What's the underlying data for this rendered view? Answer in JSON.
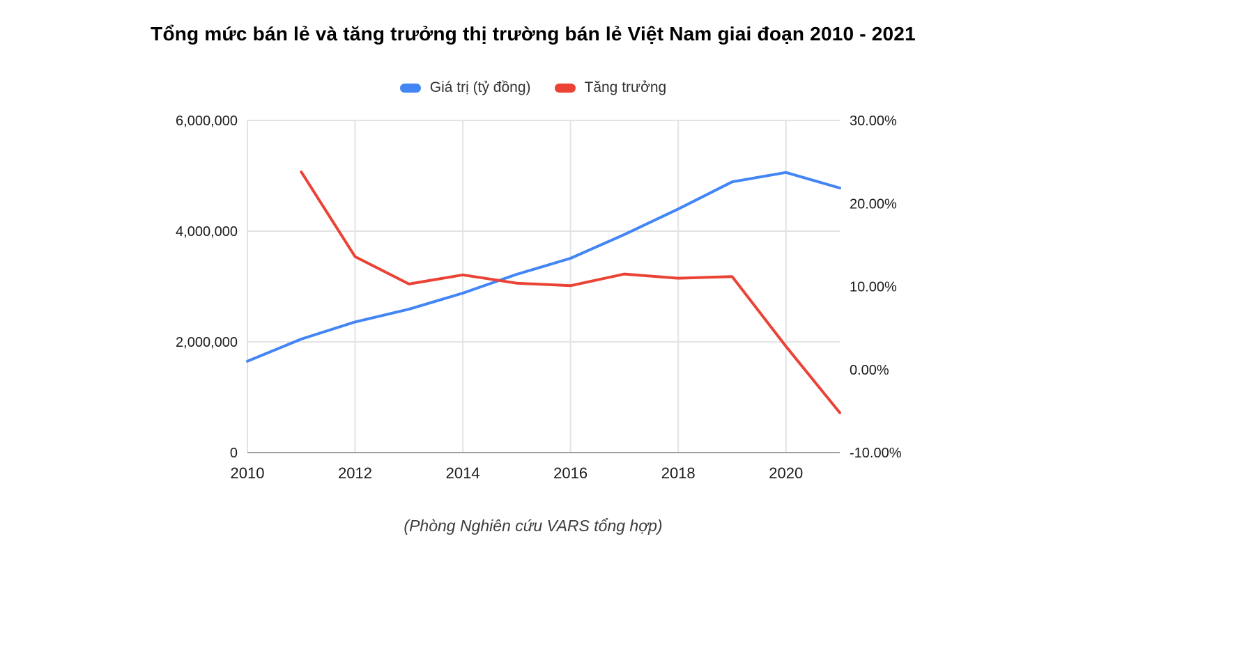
{
  "title": "Tổng mức bán lẻ và tăng trưởng thị trường bán lẻ Việt Nam giai đoạn 2010 - 2021",
  "caption": "(Phòng Nghiên cứu VARS tổng hợp)",
  "legend": {
    "items": [
      {
        "label": "Giá trị (tỷ đồng)",
        "color": "#4285F4"
      },
      {
        "label": "Tăng trưởng",
        "color": "#EA4335"
      }
    ]
  },
  "chart_data": {
    "type": "line",
    "title": "Tổng mức bán lẻ và tăng trưởng thị trường bán lẻ Việt Nam giai đoạn 2010 - 2021",
    "x": [
      2010,
      2011,
      2012,
      2013,
      2014,
      2015,
      2016,
      2017,
      2018,
      2019,
      2020,
      2021
    ],
    "x_ticks": [
      2010,
      2012,
      2014,
      2016,
      2018,
      2020
    ],
    "x_tick_labels": [
      "2010",
      "2012",
      "2014",
      "2016",
      "2018",
      "2020"
    ],
    "series": [
      {
        "name": "Giá trị (tỷ đồng)",
        "axis": "left",
        "color": "#4285F4",
        "values": [
          1650000,
          2050000,
          2360000,
          2590000,
          2880000,
          3220000,
          3510000,
          3940000,
          4400000,
          4890000,
          5060000,
          4780000
        ]
      },
      {
        "name": "Tăng trưởng",
        "axis": "right",
        "color": "#EA4335",
        "values": [
          null,
          23.8,
          13.6,
          10.3,
          11.4,
          10.4,
          10.1,
          11.5,
          11.0,
          11.2,
          2.8,
          -5.2
        ]
      }
    ],
    "left_axis": {
      "min": 0,
      "max": 6000000,
      "ticks": [
        0,
        2000000,
        4000000,
        6000000
      ],
      "tick_labels": [
        "0",
        "2,000,000",
        "4,000,000",
        "6,000,000"
      ]
    },
    "right_axis": {
      "min": -10,
      "max": 30,
      "ticks": [
        -10,
        0,
        10,
        20,
        30
      ],
      "tick_labels": [
        "-10.00%",
        "0.00%",
        "10.00%",
        "20.00%",
        "30.00%"
      ]
    },
    "grid": true,
    "legend_position": "top",
    "grid_color": "#e3e3e3",
    "baseline_color": "#9e9e9e"
  }
}
